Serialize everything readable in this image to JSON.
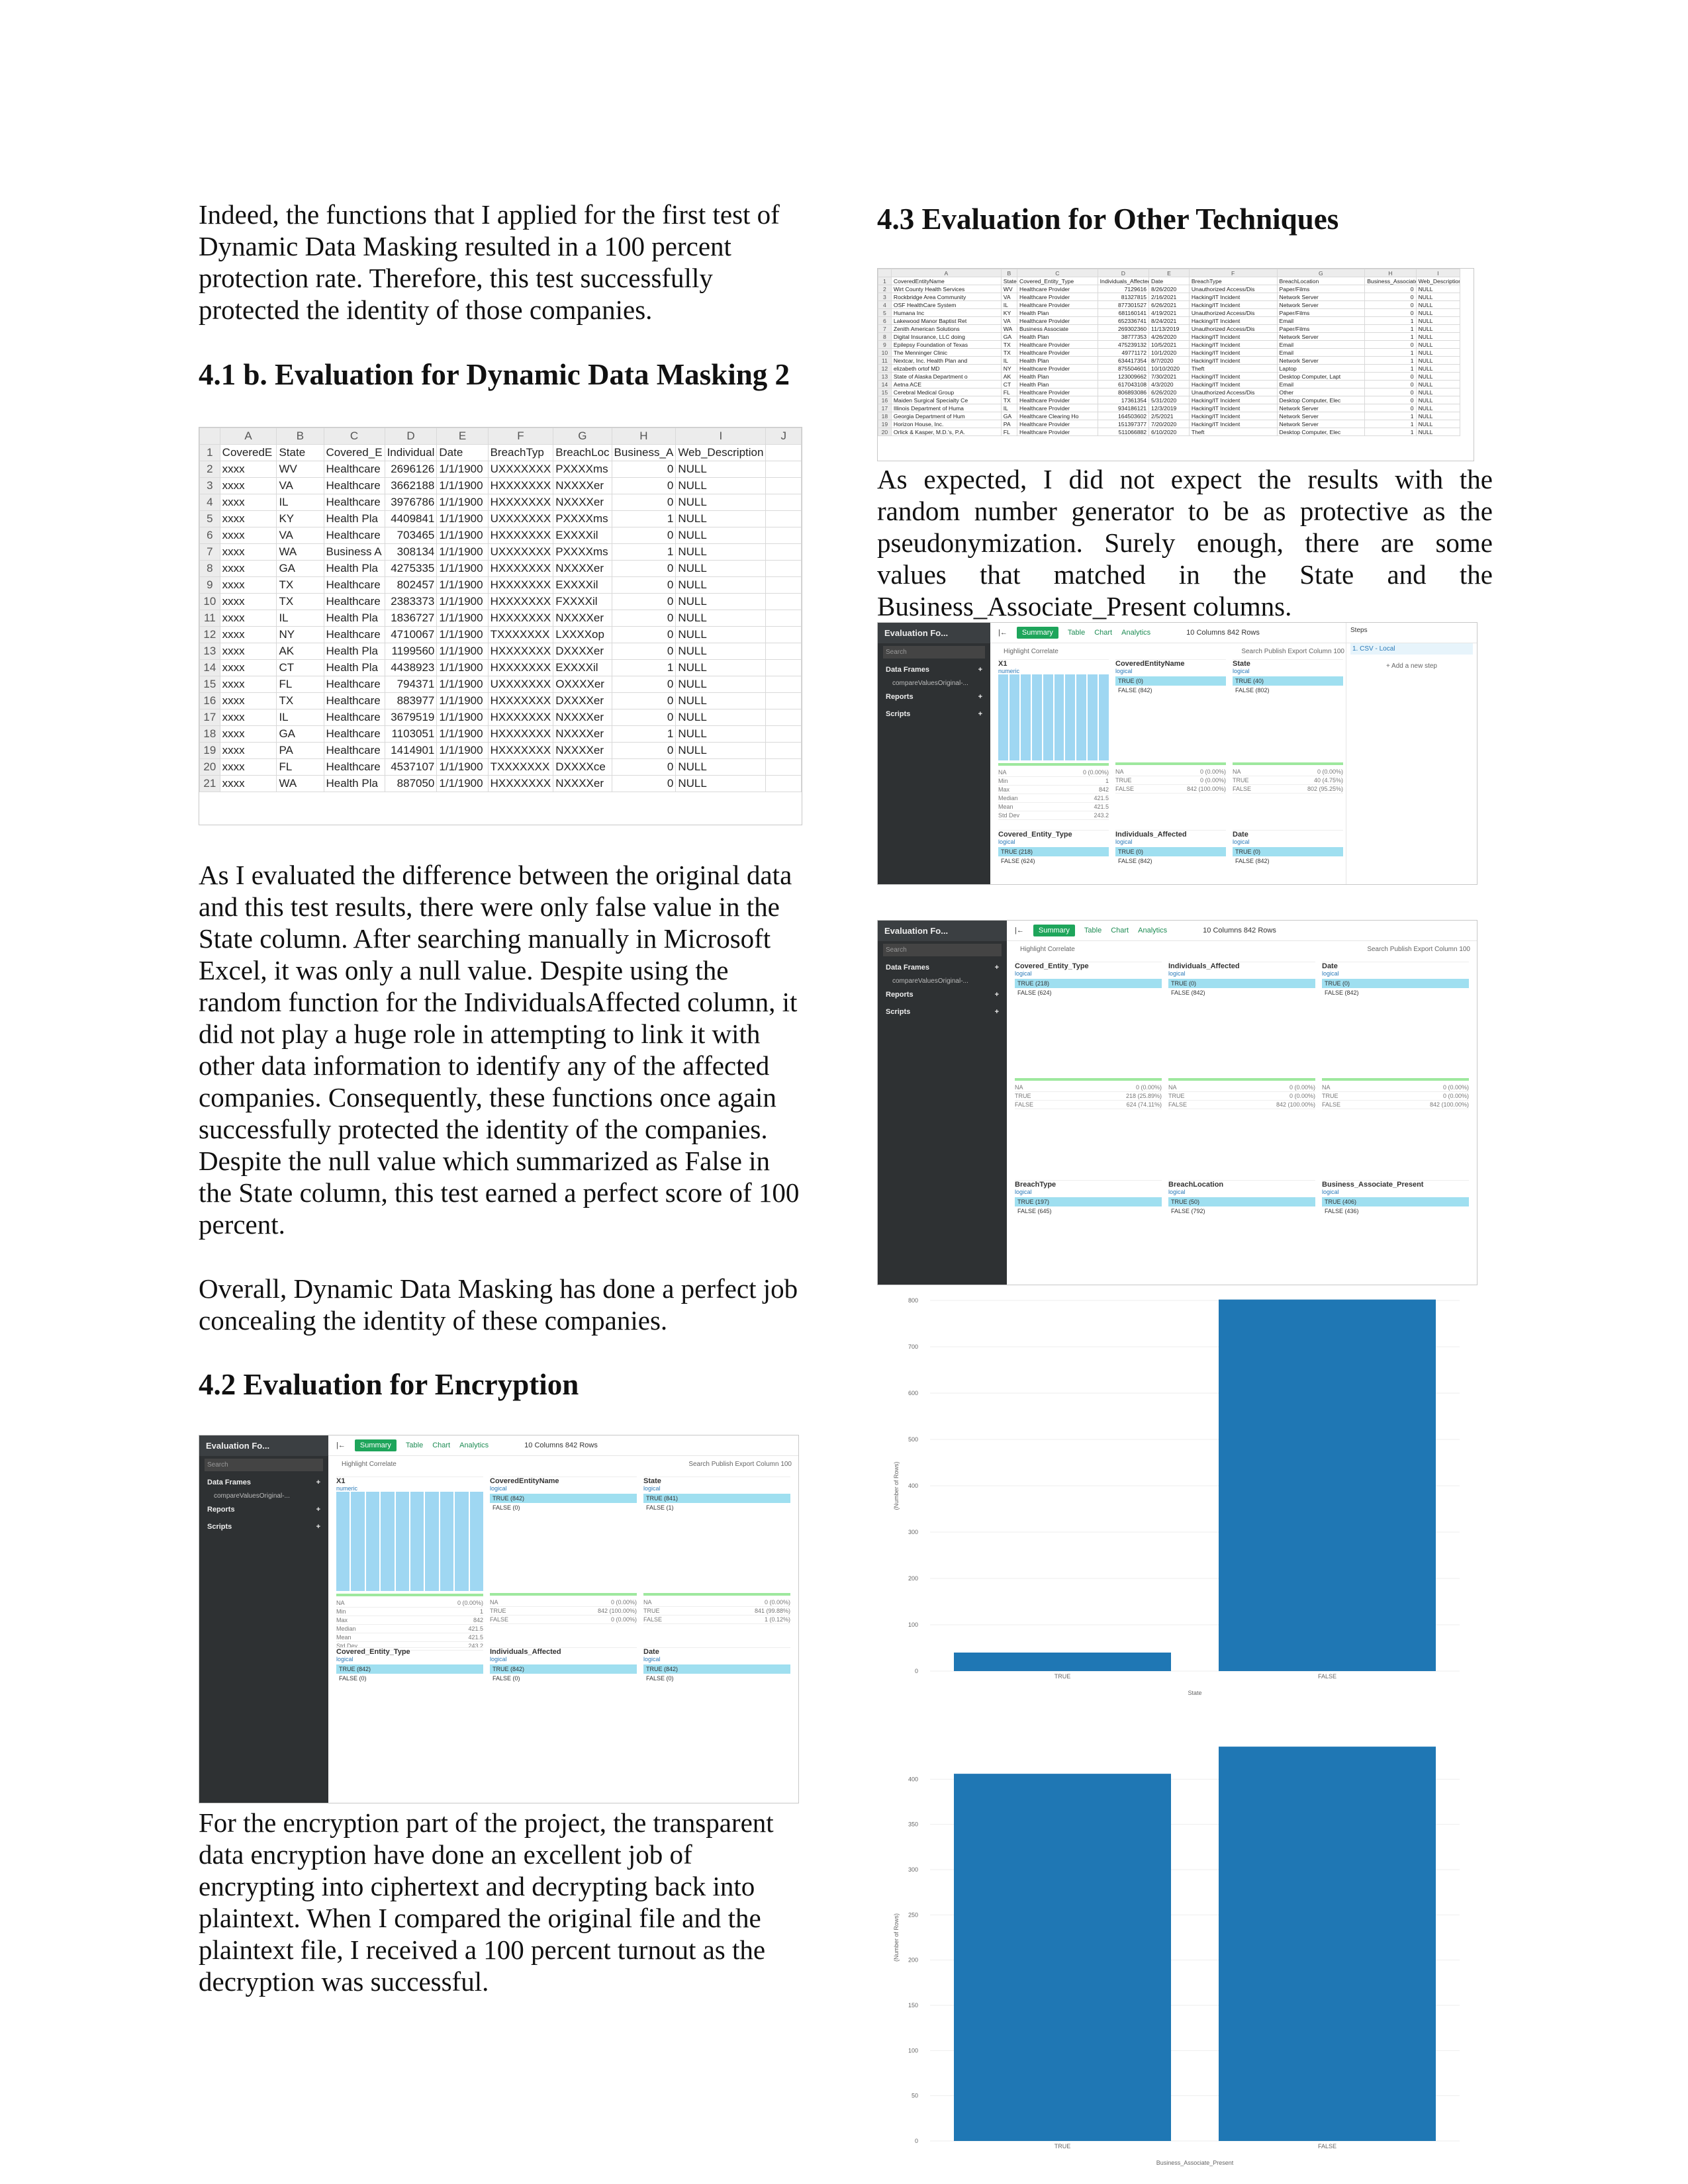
{
  "left": {
    "p1": "Indeed, the functions that I applied for the first test of Dynamic Data Masking resulted in a 100 percent protection rate. Therefore, this test successfully protected the identity of those companies.",
    "h41b_num": "4.1",
    "h41b_text": "b. Evaluation for Dynamic Data Masking 2",
    "sheet": {
      "col_letters": [
        "",
        "A",
        "B",
        "C",
        "D",
        "E",
        "F",
        "G",
        "H",
        "I",
        "J"
      ],
      "header": [
        "1",
        "CoveredE",
        "State",
        "Covered_E",
        "Individual",
        "Date",
        "BreachTyp",
        "BreachLoc",
        "Business_A",
        "Web_Description",
        ""
      ],
      "rows": [
        [
          "2",
          "xxxx",
          "WV",
          "Healthcare",
          "2696126",
          "1/1/1900",
          "UXXXXXXX",
          "PXXXXms",
          "0",
          "NULL"
        ],
        [
          "3",
          "xxxx",
          "VA",
          "Healthcare",
          "3662188",
          "1/1/1900",
          "HXXXXXXX",
          "NXXXXer",
          "0",
          "NULL"
        ],
        [
          "4",
          "xxxx",
          "IL",
          "Healthcare",
          "3976786",
          "1/1/1900",
          "HXXXXXXX",
          "NXXXXer",
          "0",
          "NULL"
        ],
        [
          "5",
          "xxxx",
          "KY",
          "Health Pla",
          "4409841",
          "1/1/1900",
          "UXXXXXXX",
          "PXXXXms",
          "1",
          "NULL"
        ],
        [
          "6",
          "xxxx",
          "VA",
          "Healthcare",
          "703465",
          "1/1/1900",
          "HXXXXXXX",
          "EXXXXil",
          "0",
          "NULL"
        ],
        [
          "7",
          "xxxx",
          "WA",
          "Business A",
          "308134",
          "1/1/1900",
          "UXXXXXXX",
          "PXXXXms",
          "1",
          "NULL"
        ],
        [
          "8",
          "xxxx",
          "GA",
          "Health Pla",
          "4275335",
          "1/1/1900",
          "HXXXXXXX",
          "NXXXXer",
          "0",
          "NULL"
        ],
        [
          "9",
          "xxxx",
          "TX",
          "Healthcare",
          "802457",
          "1/1/1900",
          "HXXXXXXX",
          "EXXXXil",
          "0",
          "NULL"
        ],
        [
          "10",
          "xxxx",
          "TX",
          "Healthcare",
          "2383373",
          "1/1/1900",
          "HXXXXXXX",
          "FXXXXil",
          "0",
          "NULL"
        ],
        [
          "11",
          "xxxx",
          "IL",
          "Health Pla",
          "1836727",
          "1/1/1900",
          "HXXXXXXX",
          "NXXXXer",
          "0",
          "NULL"
        ],
        [
          "12",
          "xxxx",
          "NY",
          "Healthcare",
          "4710067",
          "1/1/1900",
          "TXXXXXXX",
          "LXXXXop",
          "0",
          "NULL"
        ],
        [
          "13",
          "xxxx",
          "AK",
          "Health Pla",
          "1199560",
          "1/1/1900",
          "HXXXXXXX",
          "DXXXXer",
          "0",
          "NULL"
        ],
        [
          "14",
          "xxxx",
          "CT",
          "Health Pla",
          "4438923",
          "1/1/1900",
          "HXXXXXXX",
          "EXXXXil",
          "1",
          "NULL"
        ],
        [
          "15",
          "xxxx",
          "FL",
          "Healthcare",
          "794371",
          "1/1/1900",
          "UXXXXXXX",
          "OXXXXer",
          "0",
          "NULL"
        ],
        [
          "16",
          "xxxx",
          "TX",
          "Healthcare",
          "883977",
          "1/1/1900",
          "HXXXXXXX",
          "DXXXXer",
          "0",
          "NULL"
        ],
        [
          "17",
          "xxxx",
          "IL",
          "Healthcare",
          "3679519",
          "1/1/1900",
          "HXXXXXXX",
          "NXXXXer",
          "0",
          "NULL"
        ],
        [
          "18",
          "xxxx",
          "GA",
          "Healthcare",
          "1103051",
          "1/1/1900",
          "HXXXXXXX",
          "NXXXXer",
          "1",
          "NULL"
        ],
        [
          "19",
          "xxxx",
          "PA",
          "Healthcare",
          "1414901",
          "1/1/1900",
          "HXXXXXXX",
          "NXXXXer",
          "0",
          "NULL"
        ],
        [
          "20",
          "xxxx",
          "FL",
          "Healthcare",
          "4537107",
          "1/1/1900",
          "TXXXXXXX",
          "DXXXXce",
          "0",
          "NULL"
        ],
        [
          "21",
          "xxxx",
          "WA",
          "Health Pla",
          "887050",
          "1/1/1900",
          "HXXXXXXX",
          "NXXXXer",
          "0",
          "NULL"
        ]
      ]
    },
    "p2": "As I evaluated the difference between the original data and this test results, there were only false value in the State column. After searching manually in Microsoft Excel, it was only a null value. Despite using the random function for the IndividualsAffected column, it did not play a huge role in attempting to link it with other data information to identify any of the affected companies. Consequently, these functions once again successfully protected the identity of the companies. Despite the null value which summarized as False in the State column, this test earned a perfect score of 100 percent.",
    "p3": "Overall, Dynamic Data Masking has done a perfect job concealing the identity of these companies.",
    "h42_num": "4.2",
    "h42_text": "Evaluation for Encryption",
    "p4": "For the encryption part of the project, the transparent data encryption have done an excellent job of encrypting into ciphertext and decrypting back into plaintext. When I compared the original file and the plaintext file, I received a 100 percent turnout as the decryption was successful."
  },
  "app": {
    "title": "Evaluation Fo...",
    "search": "Search",
    "data_frames": "Data Frames",
    "frame_name": "compareValuesOriginal-...",
    "reports": "Reports",
    "scripts": "Scripts",
    "tab_summary": "Summary",
    "tab_table": "Table",
    "tab_chart": "Chart",
    "tab_analytics": "Analytics",
    "cols": "10 Columns",
    "rows": "842 Rows",
    "highlight": "Highlight",
    "correlate": "Correlate",
    "search2": "Search",
    "publish": "Publish",
    "export": "Export",
    "column": "Column",
    "column_n": "100",
    "steps": "Steps",
    "step1": "1. CSV - Local",
    "add_step": "+ Add a new step"
  },
  "enc_app": {
    "cards": [
      {
        "name": "X1",
        "type": "numeric",
        "stats": [
          [
            "NA",
            "0 (0.00%)"
          ],
          [
            "Min",
            "1"
          ],
          [
            "Max",
            "842"
          ],
          [
            "Median",
            "421.5"
          ],
          [
            "Mean",
            "421.5"
          ],
          [
            "Std Dev",
            "243.2"
          ]
        ]
      },
      {
        "name": "CoveredEntityName",
        "type": "logical",
        "t": "TRUE (842)",
        "f": "FALSE (0)",
        "stats": [
          [
            "NA",
            "0 (0.00%)"
          ],
          [
            "TRUE",
            "842 (100.00%)"
          ],
          [
            "FALSE",
            "0 (0.00%)"
          ]
        ]
      },
      {
        "name": "State",
        "type": "logical",
        "t": "TRUE (841)",
        "f": "FALSE (1)",
        "stats": [
          [
            "NA",
            "0 (0.00%)"
          ],
          [
            "TRUE",
            "841 (99.88%)"
          ],
          [
            "FALSE",
            "1 (0.12%)"
          ]
        ]
      },
      {
        "name": "Covered_Entity_Type",
        "type": "logical",
        "t": "TRUE (842)",
        "f": "FALSE (0)"
      },
      {
        "name": "Individuals_Affected",
        "type": "logical",
        "t": "TRUE (842)",
        "f": "FALSE (0)"
      },
      {
        "name": "Date",
        "type": "logical",
        "t": "TRUE (842)",
        "f": "FALSE (0)"
      }
    ]
  },
  "right": {
    "h43_num": "4.3",
    "h43_text": "Evaluation for Other Techniques",
    "p5": "As expected, I did not expect the results with the random number generator to be as protective as the pseudonymization. Surely enough, there are some values that matched in the State and the Business_Associate_Present columns.",
    "sheet2_header": [
      "CoveredEntityName",
      "State",
      "Covered_Entity_Type",
      "Individuals_Affected",
      "Date",
      "BreachType",
      "BreachLocation",
      "Business_Associate_Pr",
      "Web_Description"
    ],
    "sheet2_rows": [
      [
        "Wirt County Health Services",
        "WV",
        "Healthcare Provider",
        "7129616",
        "8/26/2020",
        "Unauthorized Access/Dis",
        "Paper/Films",
        "0",
        "NULL"
      ],
      [
        "Rockbridge Area Community",
        "VA",
        "Healthcare Provider",
        "81327815",
        "2/16/2021",
        "Hacking/IT Incident",
        "Network Server",
        "0",
        "NULL"
      ],
      [
        "OSF HealthCare System",
        "IL",
        "Healthcare Provider",
        "877301527",
        "6/26/2021",
        "Hacking/IT Incident",
        "Network Server",
        "0",
        "NULL"
      ],
      [
        "Humana Inc",
        "KY",
        "Health Plan",
        "681160141",
        "4/19/2021",
        "Unauthorized Access/Dis",
        "Paper/Films",
        "0",
        "NULL"
      ],
      [
        "Lakewood Manor Baptist Ret",
        "VA",
        "Healthcare Provider",
        "652336741",
        "8/24/2021",
        "Hacking/IT Incident",
        "Email",
        "1",
        "NULL"
      ],
      [
        "Zenith American Solutions",
        "WA",
        "Business Associate",
        "269302360",
        "11/13/2019",
        "Unauthorized Access/Dis",
        "Paper/Films",
        "1",
        "NULL"
      ],
      [
        "Digital Insurance, LLC doing",
        "GA",
        "Health Plan",
        "38777353",
        "4/26/2020",
        "Hacking/IT Incident",
        "Network Server",
        "1",
        "NULL"
      ],
      [
        "Epilepsy Foundation of Texas",
        "TX",
        "Healthcare Provider",
        "475239132",
        "10/5/2021",
        "Hacking/IT Incident",
        "Email",
        "0",
        "NULL"
      ],
      [
        "The Menninger Clinic",
        "TX",
        "Healthcare Provider",
        "49771172",
        "10/1/2020",
        "Hacking/IT Incident",
        "Email",
        "1",
        "NULL"
      ],
      [
        "Nextcar, Inc. Health Plan and",
        "IL",
        "Health Plan",
        "634417354",
        "8/7/2020",
        "Hacking/IT Incident",
        "Network Server",
        "1",
        "NULL"
      ],
      [
        "elizabeth ortof MD",
        "NY",
        "Healthcare Provider",
        "875504601",
        "10/10/2020",
        "Theft",
        "Laptop",
        "1",
        "NULL"
      ],
      [
        "State of Alaska Department o",
        "AK",
        "Health Plan",
        "123009662",
        "7/30/2021",
        "Hacking/IT Incident",
        "Desktop Computer, Lapt",
        "0",
        "NULL"
      ],
      [
        "Aetna ACE",
        "CT",
        "Health Plan",
        "617043108",
        "4/3/2020",
        "Hacking/IT Incident",
        "Email",
        "0",
        "NULL"
      ],
      [
        "Cerebral Medical Group",
        "FL",
        "Healthcare Provider",
        "806893086",
        "6/26/2020",
        "Unauthorized Access/Dis",
        "Other",
        "0",
        "NULL"
      ],
      [
        "Maiden Surgical Specialty Ce",
        "TX",
        "Healthcare Provider",
        "17361354",
        "5/31/2020",
        "Hacking/IT Incident",
        "Desktop Computer, Elec",
        "0",
        "NULL"
      ],
      [
        "Illinois Department of Huma",
        "IL",
        "Healthcare Provider",
        "934186121",
        "12/3/2019",
        "Hacking/IT Incident",
        "Network Server",
        "0",
        "NULL"
      ],
      [
        "Georgia Department of Hum",
        "GA",
        "Healthcare Clearing Ho",
        "164503602",
        "2/5/2021",
        "Hacking/IT Incident",
        "Network Server",
        "1",
        "NULL"
      ],
      [
        "Horizon House, Inc.",
        "PA",
        "Healthcare Provider",
        "151397377",
        "7/20/2020",
        "Hacking/IT Incident",
        "Network Server",
        "1",
        "NULL"
      ],
      [
        "Orlick & Kasper, M.D.'s, P.A.",
        "FL",
        "Healthcare Provider",
        "511066882",
        "6/10/2020",
        "Theft",
        "Desktop Computer, Elec",
        "1",
        "NULL"
      ]
    ]
  },
  "app2": {
    "cards": [
      {
        "name": "X1",
        "type": "numeric",
        "stats": [
          [
            "NA",
            "0 (0.00%)"
          ],
          [
            "Min",
            "1"
          ],
          [
            "Max",
            "842"
          ],
          [
            "Median",
            "421.5"
          ],
          [
            "Mean",
            "421.5"
          ],
          [
            "Std Dev",
            "243.2"
          ]
        ]
      },
      {
        "name": "CoveredEntityName",
        "type": "logical",
        "t": "TRUE (0)",
        "f": "FALSE (842)",
        "stats": [
          [
            "NA",
            "0 (0.00%)"
          ],
          [
            "TRUE",
            "0 (0.00%)"
          ],
          [
            "FALSE",
            "842 (100.00%)"
          ]
        ]
      },
      {
        "name": "State",
        "type": "logical",
        "t": "TRUE (40)",
        "f": "FALSE (802)",
        "stats": [
          [
            "NA",
            "0 (0.00%)"
          ],
          [
            "TRUE",
            "40 (4.75%)"
          ],
          [
            "FALSE",
            "802 (95.25%)"
          ]
        ]
      },
      {
        "name": "Covered_Entity_Type",
        "type": "logical",
        "t": "TRUE (218)",
        "f": "FALSE (624)"
      },
      {
        "name": "Individuals_Affected",
        "type": "logical",
        "t": "TRUE (0)",
        "f": "FALSE (842)"
      },
      {
        "name": "Date",
        "type": "logical",
        "t": "TRUE (0)",
        "f": "FALSE (842)"
      }
    ]
  },
  "app3": {
    "cards": [
      {
        "name": "Covered_Entity_Type",
        "type": "logical",
        "t": "TRUE (218)",
        "f": "FALSE (624)",
        "stats": [
          [
            "NA",
            "0 (0.00%)"
          ],
          [
            "TRUE",
            "218 (25.89%)"
          ],
          [
            "FALSE",
            "624 (74.11%)"
          ]
        ]
      },
      {
        "name": "Individuals_Affected",
        "type": "logical",
        "t": "TRUE (0)",
        "f": "FALSE (842)",
        "stats": [
          [
            "NA",
            "0 (0.00%)"
          ],
          [
            "TRUE",
            "0 (0.00%)"
          ],
          [
            "FALSE",
            "842 (100.00%)"
          ]
        ]
      },
      {
        "name": "Date",
        "type": "logical",
        "t": "TRUE (0)",
        "f": "FALSE (842)",
        "stats": [
          [
            "NA",
            "0 (0.00%)"
          ],
          [
            "TRUE",
            "0 (0.00%)"
          ],
          [
            "FALSE",
            "842 (100.00%)"
          ]
        ]
      },
      {
        "name": "BreachType",
        "type": "logical",
        "t": "TRUE (197)",
        "f": "FALSE (645)"
      },
      {
        "name": "BreachLocation",
        "type": "logical",
        "t": "TRUE (50)",
        "f": "FALSE (792)"
      },
      {
        "name": "Business_Associate_Present",
        "type": "logical",
        "t": "TRUE (406)",
        "f": "FALSE (436)"
      }
    ]
  },
  "chart_data": [
    {
      "type": "bar",
      "categories": [
        "TRUE",
        "FALSE"
      ],
      "values": [
        40,
        802
      ],
      "xlabel": "State",
      "ylabel": "(Number of Rows)",
      "ylim": [
        0,
        800
      ],
      "yticks": [
        0,
        100,
        200,
        300,
        400,
        500,
        600,
        700,
        800
      ],
      "color": "#1f77b4"
    },
    {
      "type": "bar",
      "categories": [
        "TRUE",
        "FALSE"
      ],
      "values": [
        406,
        436
      ],
      "xlabel": "Business_Associate_Present",
      "ylabel": "(Number of Rows)",
      "ylim": [
        0,
        450
      ],
      "yticks": [
        0,
        50,
        100,
        150,
        200,
        250,
        300,
        350,
        400
      ],
      "color": "#1f77b4"
    }
  ]
}
